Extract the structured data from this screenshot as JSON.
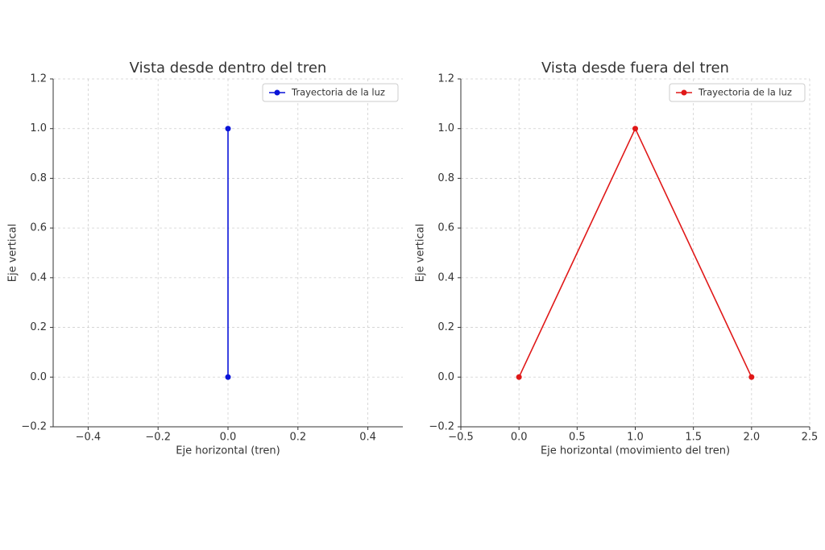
{
  "chart_data": [
    {
      "type": "line",
      "title": "Vista desde dentro del tren",
      "x_label": "Eje horizontal (tren)",
      "y_label": "Eje vertical",
      "x": [
        0,
        0
      ],
      "series": [
        {
          "name": "Trayectoria de la luz",
          "color": "#0a14d8",
          "values": [
            0,
            1
          ]
        }
      ],
      "xlim": [
        -0.5,
        0.5
      ],
      "xticks": [
        {
          "value": -0.4,
          "label": "−0.4"
        },
        {
          "value": -0.2,
          "label": "−0.2"
        },
        {
          "value": 0,
          "label": "0.0"
        },
        0.2,
        0.4
      ],
      "ylim": [
        -0.2,
        1.2
      ],
      "yticks": [
        {
          "value": -0.2,
          "label": "−0.2"
        },
        {
          "value": 0,
          "label": "0.0"
        },
        0.2,
        0.4,
        0.6,
        0.8,
        {
          "value": 1,
          "label": "1.0"
        },
        1.2
      ],
      "grid": true,
      "legend": "upper right"
    },
    {
      "type": "line",
      "title": "Vista desde fuera del tren",
      "x_label": "Eje horizontal (movimiento del tren)",
      "y_label": "Eje vertical",
      "x": [
        0,
        1,
        2
      ],
      "series": [
        {
          "name": "Trayectoria de la luz",
          "color": "#e01818",
          "values": [
            0,
            1,
            0
          ]
        }
      ],
      "xlim": [
        -0.5,
        2.5
      ],
      "xticks": [
        {
          "value": -0.5,
          "label": "−0.5"
        },
        {
          "value": 0,
          "label": "0.0"
        },
        0.5,
        {
          "value": 1,
          "label": "1.0"
        },
        1.5,
        {
          "value": 2,
          "label": "2.0"
        },
        2.5
      ],
      "ylim": [
        -0.2,
        1.2
      ],
      "yticks": [
        {
          "value": -0.2,
          "label": "−0.2"
        },
        {
          "value": 0,
          "label": "0.0"
        },
        0.2,
        0.4,
        0.6,
        0.8,
        {
          "value": 1,
          "label": "1.0"
        },
        1.2
      ],
      "grid": true,
      "legend": "upper right"
    }
  ]
}
